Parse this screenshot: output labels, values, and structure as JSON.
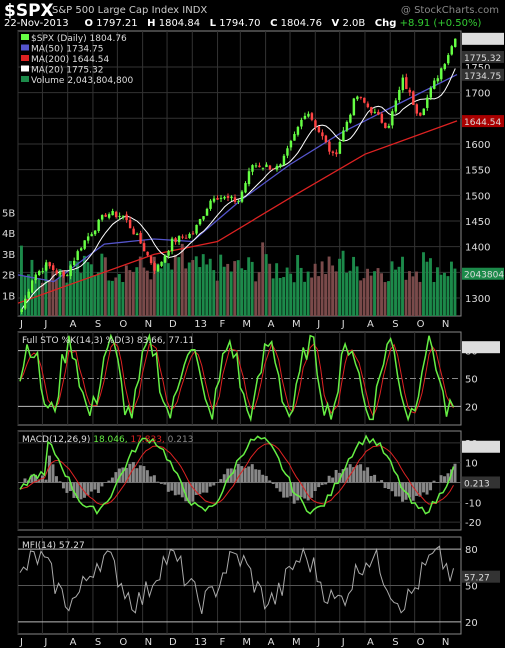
{
  "header": {
    "symbol": "$SPX",
    "name": "S&P 500 Large Cap Index",
    "exchange": "INDX",
    "watermark": "@ StockCharts.com",
    "date": "22-Nov-2013",
    "open_label": "O",
    "open": "1797.21",
    "high_label": "H",
    "high": "1804.84",
    "low_label": "L",
    "low": "1794.70",
    "close_label": "C",
    "close": "1804.76",
    "volume_label": "V",
    "volume": "2.0B",
    "chg_label": "Chg",
    "chg": "+8.91 (+0.50%)"
  },
  "colors": {
    "up_candle": "#66ff44",
    "down_candle": "#ff4444",
    "ma50": "#5555cc",
    "ma200": "#dd2222",
    "ma20": "#ffffff",
    "volume_up": "#1c8a4a",
    "volume_down": "#7a4a4a",
    "osc_line": "#66ee44",
    "signal_line": "#dd2222",
    "mfi_line": "#aaaaaa"
  },
  "legend": [
    {
      "key": "price",
      "text": "$SPX (Daily) 1804.76"
    },
    {
      "key": "ma50",
      "text": "MA(50) 1734.75"
    },
    {
      "key": "ma200",
      "text": "MA(200) 1644.54"
    },
    {
      "key": "ma20",
      "text": "MA(20) 1775.32"
    },
    {
      "key": "vol",
      "text": "Volume 2,043,804,800"
    }
  ],
  "chart_data": [
    {
      "type": "candlestick",
      "title": "$SPX (Daily)",
      "x_ticks": [
        "J",
        "J",
        "A",
        "S",
        "O",
        "N",
        "D",
        "13",
        "F",
        "M",
        "A",
        "M",
        "J",
        "J",
        "A",
        "S",
        "O",
        "N"
      ],
      "y_ticks": [
        1300,
        1350,
        1400,
        1450,
        1500,
        1550,
        1600,
        1650,
        1700,
        1750
      ],
      "ylim": [
        1265,
        1820
      ],
      "volume_ticks": [
        "1B",
        "2B",
        "3B",
        "4B",
        "5B"
      ],
      "right_labels": [
        "1804.76",
        "1775.32",
        "1734.75",
        "1644.54",
        "2043804"
      ],
      "close_path": [
        [
          "2012-06-01",
          1278
        ],
        [
          "2012-06-15",
          1342
        ],
        [
          "2012-07-02",
          1365
        ],
        [
          "2012-07-24",
          1340
        ],
        [
          "2012-08-15",
          1405
        ],
        [
          "2012-09-14",
          1465
        ],
        [
          "2012-10-05",
          1460
        ],
        [
          "2012-10-25",
          1412
        ],
        [
          "2012-11-15",
          1353
        ],
        [
          "2012-12-05",
          1410
        ],
        [
          "2012-12-31",
          1426
        ],
        [
          "2013-01-25",
          1500
        ],
        [
          "2013-02-25",
          1488
        ],
        [
          "2013-03-15",
          1560
        ],
        [
          "2013-04-18",
          1553
        ],
        [
          "2013-05-21",
          1668
        ],
        [
          "2013-06-24",
          1573
        ],
        [
          "2013-07-22",
          1695
        ],
        [
          "2013-08-30",
          1633
        ],
        [
          "2013-09-18",
          1725
        ],
        [
          "2013-10-08",
          1656
        ],
        [
          "2013-11-22",
          1805
        ]
      ],
      "ma200_path": [
        [
          "2012-06-01",
          1290
        ],
        [
          "2012-11-15",
          1385
        ],
        [
          "2013-02-01",
          1410
        ],
        [
          "2013-05-01",
          1495
        ],
        [
          "2013-08-01",
          1580
        ],
        [
          "2013-11-22",
          1645
        ]
      ],
      "ma50_path": [
        [
          "2012-06-01",
          1345
        ],
        [
          "2012-07-15",
          1332
        ],
        [
          "2012-09-15",
          1405
        ],
        [
          "2012-11-15",
          1415
        ],
        [
          "2013-01-01",
          1410
        ],
        [
          "2013-03-01",
          1490
        ],
        [
          "2013-05-01",
          1560
        ],
        [
          "2013-07-01",
          1620
        ],
        [
          "2013-09-01",
          1670
        ],
        [
          "2013-11-22",
          1735
        ]
      ]
    },
    {
      "type": "line",
      "title": "Full STO %K(14,3) %D(3)",
      "values_label": "83.66, 77.11",
      "k_last": 83.66,
      "d_last": 77.11,
      "y_ticks": [
        20,
        50,
        80
      ],
      "ylim": [
        0,
        100
      ],
      "right_label": "83.66"
    },
    {
      "type": "line",
      "title": "MACD(12,26,9)",
      "macd_last": 18.046,
      "signal_last": 17.833,
      "hist_last": 0.213,
      "macd_text": "18.046",
      "signal_text": "17.833",
      "hist_text": "0.213",
      "y_ticks": [
        -20,
        -10,
        0,
        10,
        20
      ],
      "ylim": [
        -24,
        26
      ],
      "right_labels": [
        "18.046",
        "0.213"
      ]
    },
    {
      "type": "line",
      "title": "MFI(14)",
      "values_label": "57.27",
      "last": 57.27,
      "y_ticks": [
        20,
        50,
        80
      ],
      "ylim": [
        10,
        90
      ],
      "right_label": "57.27"
    }
  ]
}
